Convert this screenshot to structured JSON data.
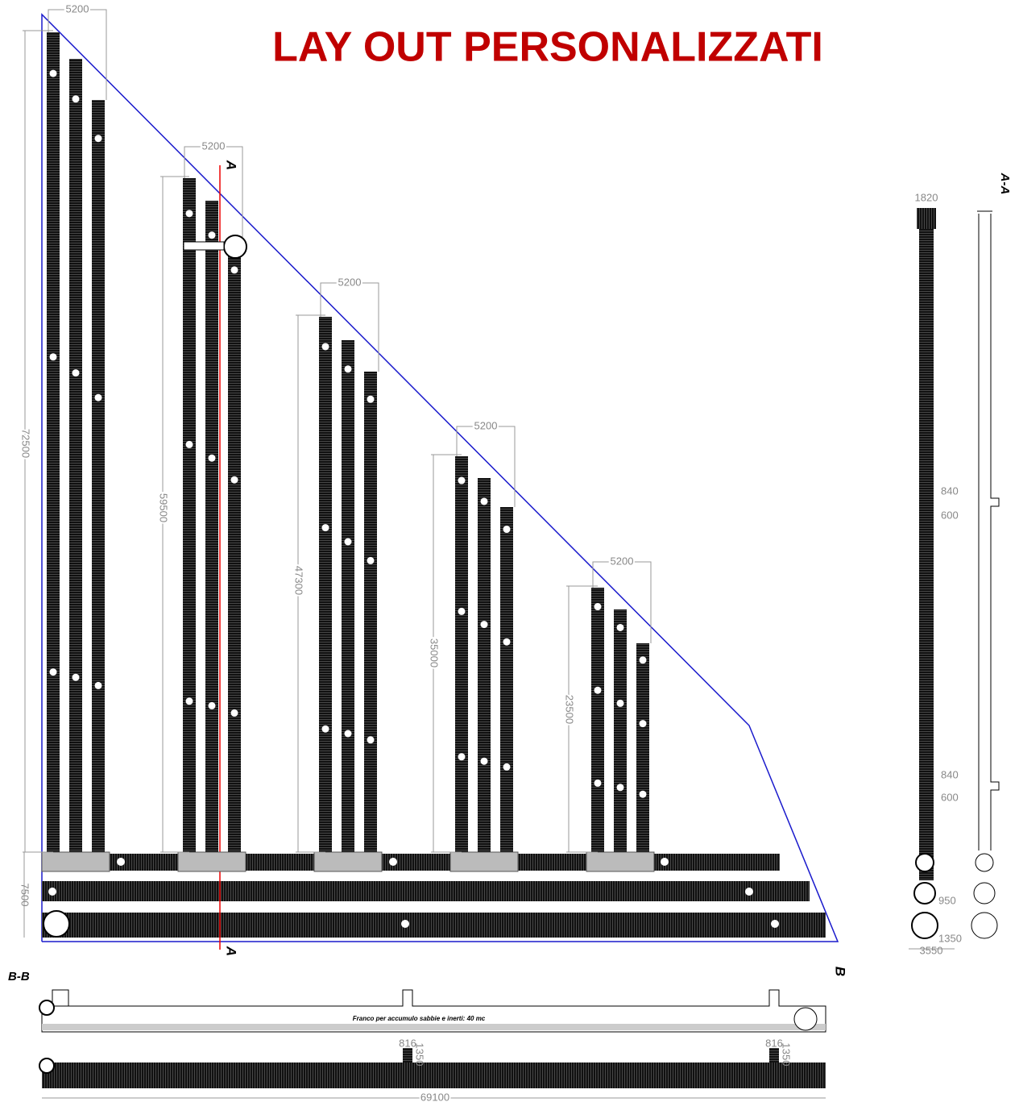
{
  "title": "LAY OUT  PERSONALIZZATI",
  "layout_groups": [
    {
      "width": "5200",
      "length": "72500"
    },
    {
      "width": "5200",
      "length": "59500"
    },
    {
      "width": "5200",
      "length": "47300"
    },
    {
      "width": "5200",
      "length": "35000"
    },
    {
      "width": "5200",
      "length": "23500"
    }
  ],
  "bottom_width": "7500",
  "section_marks": {
    "a_top": "A",
    "a_bottom": "A",
    "b": "B"
  },
  "section_bb": {
    "title": "B-B",
    "note": "Franco per accumulo sabbie e inerti: 40 mc",
    "length": "69100",
    "dims": [
      "816",
      "1350",
      "816",
      "1350"
    ]
  },
  "section_aa": {
    "title": "A-A",
    "dims": [
      "1820",
      "840",
      "600",
      "840",
      "600",
      "950",
      "1350",
      "3550"
    ]
  }
}
